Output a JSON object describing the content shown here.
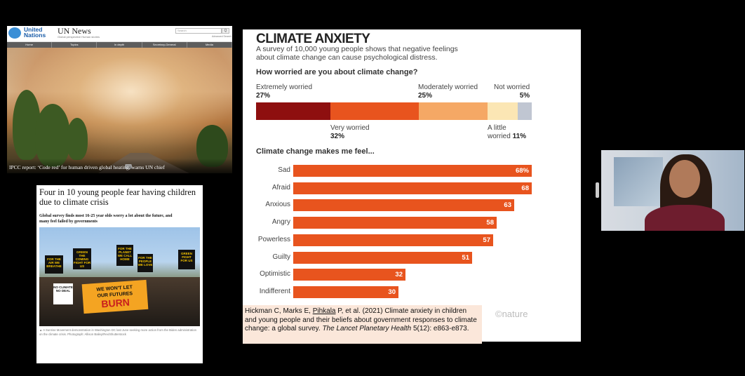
{
  "un_news": {
    "org_line1": "United",
    "org_line2": "Nations",
    "brand": "UN News",
    "tagline": "Global perspective Human stories",
    "search_placeholder": "Search",
    "search_button": "Q",
    "advanced_search": "Advanced Search",
    "nav": [
      "Home",
      "Topics",
      "In depth",
      "Secretary-General",
      "Media"
    ],
    "caption": "IPCC report: ‘Code red’ for human driven global heating, warns UN chief"
  },
  "guardian": {
    "headline": "Four in 10 young people fear having children due to climate crisis",
    "standfirst": "Global survey finds most 16-25 year olds worry a lot about the future, and many feel failed by governments",
    "photo_caption": "▲ A Sunrise Movement demonstration in Washington DC last June seeking more action from the Biden administration on the climate crisis. Photograph: Allison Bailey/Rex/Shutterstock",
    "signs": [
      "FOR THE AIR WE BREATHE",
      "GREEN THE COMING FIGHT FOR US",
      "FOR THE PLANET WE CALL HOME",
      "FOR THE PEOPLE WE LOVE",
      "GREEN FIGHT FOR US",
      "NO CLIMATE NO DEAL"
    ],
    "banner_line1": "WE WON'T LET",
    "banner_line2": "OUR FUTURES",
    "banner_line3": "BURN"
  },
  "nature": {
    "title": "CLIMATE ANXIETY",
    "description": "A survey of 10,000 young people shows that negative feelings about climate change can cause psychological distress.",
    "question1": "How worried are you about climate change?",
    "question2": "Climate change makes me feel...",
    "logo": "©nature",
    "reference_pre": "Hickman C, Marks E, ",
    "reference_link": "Pihkala",
    "reference_mid": " P, et al. (2021) Climate anxiety in children and young people and their beliefs about government responses to climate change: a global survey. ",
    "reference_journal": "The Lancet Planetary Health",
    "reference_post": " 5(12): e863-e873.",
    "worry_labels": {
      "extremely": "Extremely worried",
      "extremely_pct": "27%",
      "very": "Very worried",
      "very_pct": "32%",
      "moderately": "Moderately worried",
      "moderately_pct": "25%",
      "little": "A little",
      "little_suffix": "worried",
      "little_pct": "11%",
      "not": "Not worried",
      "not_pct": "5%"
    }
  },
  "chart_data": [
    {
      "type": "bar",
      "title": "How worried are you about climate change?",
      "orientation": "stacked-horizontal",
      "categories": [
        "Extremely worried",
        "Very worried",
        "Moderately worried",
        "A little worried",
        "Not worried"
      ],
      "values": [
        27,
        32,
        25,
        11,
        5
      ],
      "colors": [
        "#8e0f0f",
        "#e8541e",
        "#f5a865",
        "#fbe6b4",
        "#c0c6d2"
      ],
      "unit": "%"
    },
    {
      "type": "bar",
      "title": "Climate change makes me feel...",
      "orientation": "horizontal",
      "categories": [
        "Sad",
        "Afraid",
        "Anxious",
        "Angry",
        "Powerless",
        "Guilty",
        "Optimistic",
        "Indifferent"
      ],
      "values": [
        68,
        68,
        63,
        58,
        57,
        51,
        32,
        30
      ],
      "value_labels": [
        "68%",
        "68",
        "63",
        "58",
        "57",
        "51",
        "32",
        "30"
      ],
      "xlim": [
        0,
        68
      ],
      "color": "#e8541e"
    }
  ]
}
